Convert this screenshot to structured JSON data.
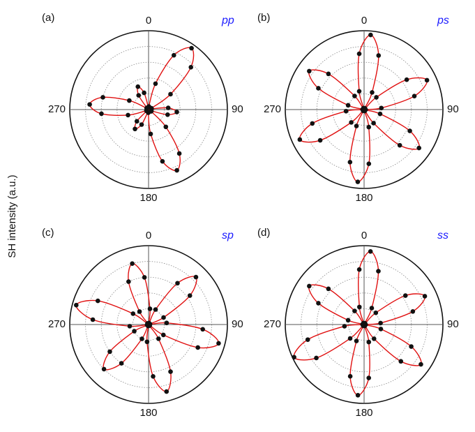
{
  "figure": {
    "ylabel": "SH intensity (a.u.)"
  },
  "chart_data": [
    {
      "type": "polar",
      "panel": "(a)",
      "title": "pp",
      "rlim": [
        0,
        1
      ],
      "rticks": [
        0.2,
        0.4,
        0.6,
        0.8
      ],
      "thetaticks": [
        0,
        90,
        180,
        270
      ],
      "grid": true,
      "marker_color": "#111111",
      "line_color": "#e01010",
      "theta": [
        5,
        15,
        25,
        35,
        45,
        55,
        65,
        75,
        85,
        95,
        105,
        115,
        125,
        135,
        145,
        155,
        165,
        175,
        185,
        195,
        205,
        215,
        225,
        235,
        245,
        255,
        265,
        275,
        285,
        295,
        305,
        315,
        325,
        335,
        345,
        355
      ],
      "values": [
        0.04,
        0.34,
        0.76,
        0.95,
        0.76,
        0.34,
        0.04,
        0.04,
        0.25,
        0.36,
        0.25,
        0.04,
        0.04,
        0.31,
        0.68,
        0.85,
        0.68,
        0.31,
        0.04,
        0.03,
        0.21,
        0.3,
        0.21,
        0.03,
        0.03,
        0.27,
        0.6,
        0.75,
        0.6,
        0.27,
        0.03,
        0.03,
        0.22,
        0.32,
        0.22,
        0.03
      ]
    },
    {
      "type": "polar",
      "panel": "(b)",
      "title": "ps",
      "rlim": [
        0,
        1
      ],
      "rticks": [
        0.2,
        0.4,
        0.6,
        0.8
      ],
      "thetaticks": [
        0,
        90,
        180,
        270
      ],
      "grid": true,
      "marker_color": "#111111",
      "line_color": "#e01010",
      "theta": [
        5,
        15,
        25,
        35,
        45,
        55,
        65,
        75,
        85,
        95,
        105,
        115,
        125,
        135,
        145,
        155,
        165,
        175,
        185,
        195,
        205,
        215,
        225,
        235,
        245,
        255,
        265,
        275,
        285,
        295,
        305,
        315,
        325,
        335,
        345,
        355
      ],
      "values": [
        0.95,
        0.71,
        0.24,
        0.02,
        0.22,
        0.66,
        0.88,
        0.66,
        0.22,
        0.02,
        0.21,
        0.64,
        0.85,
        0.64,
        0.21,
        0.02,
        0.23,
        0.69,
        0.92,
        0.69,
        0.23,
        0.02,
        0.23,
        0.68,
        0.9,
        0.68,
        0.23,
        0.02,
        0.21,
        0.64,
        0.85,
        0.64,
        0.21,
        0.02,
        0.24,
        0.71
      ]
    },
    {
      "type": "polar",
      "panel": "(c)",
      "title": "sp",
      "rlim": [
        0,
        1
      ],
      "rticks": [
        0.2,
        0.4,
        0.6,
        0.8
      ],
      "thetaticks": [
        0,
        90,
        180,
        270
      ],
      "grid": true,
      "marker_color": "#111111",
      "line_color": "#e01010",
      "theta": [
        5,
        15,
        25,
        35,
        45,
        55,
        65,
        75,
        85,
        95,
        105,
        115,
        125,
        135,
        145,
        155,
        165,
        175,
        185,
        195,
        205,
        215,
        225,
        235,
        245,
        255,
        265,
        275,
        285,
        295,
        305,
        315,
        325,
        335,
        345,
        355
      ],
      "values": [
        0.2,
        0.02,
        0.21,
        0.64,
        0.85,
        0.64,
        0.21,
        0.02,
        0.23,
        0.69,
        0.92,
        0.69,
        0.23,
        0.02,
        0.22,
        0.66,
        0.88,
        0.66,
        0.22,
        0.02,
        0.2,
        0.6,
        0.8,
        0.6,
        0.2,
        0.02,
        0.24,
        0.71,
        0.95,
        0.71,
        0.24,
        0.02,
        0.2,
        0.6,
        0.8,
        0.6
      ]
    },
    {
      "type": "polar",
      "panel": "(d)",
      "title": "ss",
      "rlim": [
        0,
        1
      ],
      "rticks": [
        0.2,
        0.4,
        0.6,
        0.8
      ],
      "thetaticks": [
        0,
        90,
        180,
        270
      ],
      "grid": true,
      "marker_color": "#111111",
      "line_color": "#e01010",
      "theta": [
        5,
        15,
        25,
        35,
        45,
        55,
        65,
        75,
        85,
        95,
        105,
        115,
        125,
        135,
        145,
        155,
        165,
        175,
        185,
        195,
        205,
        215,
        225,
        235,
        245,
        255,
        265,
        275,
        285,
        295,
        305,
        315,
        325,
        335,
        345,
        355
      ],
      "values": [
        0.93,
        0.7,
        0.23,
        0.02,
        0.21,
        0.64,
        0.85,
        0.64,
        0.21,
        0.02,
        0.22,
        0.66,
        0.88,
        0.66,
        0.22,
        0.02,
        0.23,
        0.68,
        0.9,
        0.68,
        0.23,
        0.02,
        0.25,
        0.74,
        0.98,
        0.74,
        0.25,
        0.02,
        0.21,
        0.64,
        0.85,
        0.64,
        0.21,
        0.02,
        0.23,
        0.7
      ]
    }
  ]
}
